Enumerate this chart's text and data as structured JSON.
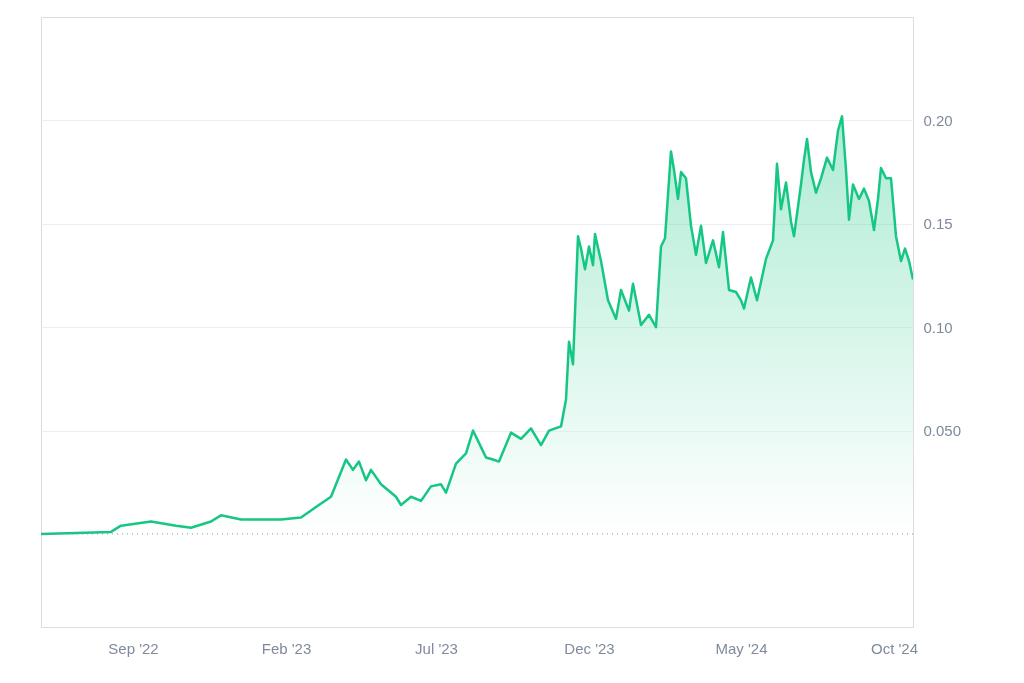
{
  "chart_data": {
    "type": "area",
    "x": [
      "2022-06-01",
      "2022-08-10",
      "2022-08-20",
      "2022-09-19",
      "2022-10-14",
      "2022-10-29",
      "2022-11-18",
      "2022-11-28",
      "2022-12-18",
      "2023-01-07",
      "2023-01-27",
      "2023-02-16",
      "2023-03-03",
      "2023-03-18",
      "2023-04-02",
      "2023-04-09",
      "2023-04-15",
      "2023-04-22",
      "2023-04-27",
      "2023-05-07",
      "2023-05-22",
      "2023-05-27",
      "2023-06-06",
      "2023-06-16",
      "2023-06-26",
      "2023-07-06",
      "2023-07-11",
      "2023-07-21",
      "2023-07-31",
      "2023-08-07",
      "2023-08-15",
      "2023-08-20",
      "2023-08-27",
      "2023-09-02",
      "2023-09-14",
      "2023-09-24",
      "2023-10-04",
      "2023-10-14",
      "2023-10-22",
      "2023-11-03",
      "2023-11-08",
      "2023-11-11",
      "2023-11-15",
      "2023-11-20",
      "2023-11-23",
      "2023-11-27",
      "2023-12-01",
      "2023-12-05",
      "2023-12-07",
      "2023-12-13",
      "2023-12-20",
      "2023-12-28",
      "2024-01-02",
      "2024-01-10",
      "2024-01-14",
      "2024-01-22",
      "2024-01-30",
      "2024-02-06",
      "2024-02-11",
      "2024-02-15",
      "2024-02-21",
      "2024-02-24",
      "2024-02-28",
      "2024-03-02",
      "2024-03-07",
      "2024-03-12",
      "2024-03-17",
      "2024-03-22",
      "2024-03-27",
      "2024-04-03",
      "2024-04-09",
      "2024-04-13",
      "2024-04-19",
      "2024-04-26",
      "2024-05-01",
      "2024-05-04",
      "2024-05-11",
      "2024-05-17",
      "2024-05-26",
      "2024-06-02",
      "2024-06-06",
      "2024-06-10",
      "2024-06-15",
      "2024-06-20",
      "2024-06-23",
      "2024-06-30",
      "2024-07-03",
      "2024-07-06",
      "2024-07-10",
      "2024-07-15",
      "2024-07-20",
      "2024-07-26",
      "2024-08-01",
      "2024-08-06",
      "2024-08-10",
      "2024-08-14",
      "2024-08-17",
      "2024-08-21",
      "2024-08-27",
      "2024-09-01",
      "2024-09-06",
      "2024-09-11",
      "2024-09-15",
      "2024-09-18",
      "2024-09-23",
      "2024-09-28",
      "2024-10-03",
      "2024-10-08",
      "2024-10-12",
      "2024-10-16",
      "2024-10-20"
    ],
    "series": [
      {
        "color": "#16c784",
        "values": [
          0.0,
          0.001,
          0.004,
          0.006,
          0.004,
          0.003,
          0.006,
          0.009,
          0.007,
          0.007,
          0.007,
          0.008,
          0.013,
          0.018,
          0.036,
          0.031,
          0.035,
          0.026,
          0.031,
          0.024,
          0.018,
          0.014,
          0.018,
          0.016,
          0.023,
          0.024,
          0.02,
          0.034,
          0.039,
          0.05,
          0.042,
          0.037,
          0.036,
          0.035,
          0.049,
          0.046,
          0.051,
          0.043,
          0.05,
          0.052,
          0.065,
          0.093,
          0.082,
          0.144,
          0.138,
          0.128,
          0.139,
          0.13,
          0.145,
          0.132,
          0.113,
          0.104,
          0.118,
          0.108,
          0.121,
          0.101,
          0.106,
          0.1,
          0.139,
          0.143,
          0.185,
          0.176,
          0.162,
          0.175,
          0.172,
          0.149,
          0.135,
          0.149,
          0.131,
          0.142,
          0.129,
          0.146,
          0.118,
          0.117,
          0.113,
          0.109,
          0.124,
          0.113,
          0.133,
          0.142,
          0.179,
          0.157,
          0.17,
          0.151,
          0.144,
          0.169,
          0.181,
          0.191,
          0.175,
          0.165,
          0.172,
          0.182,
          0.176,
          0.195,
          0.202,
          0.176,
          0.152,
          0.169,
          0.162,
          0.167,
          0.161,
          0.147,
          0.162,
          0.177,
          0.172,
          0.172,
          0.144,
          0.132,
          0.138,
          0.132,
          0.123
        ]
      }
    ],
    "xlim": [
      "2022-06-01",
      "2024-10-20"
    ],
    "xticks": [
      {
        "value": "2022-09-01",
        "label": "Sep '22"
      },
      {
        "value": "2023-02-01",
        "label": "Feb '23"
      },
      {
        "value": "2023-07-01",
        "label": "Jul '23"
      },
      {
        "value": "2023-12-01",
        "label": "Dec '23"
      },
      {
        "value": "2024-05-01",
        "label": "May '24"
      },
      {
        "value": "2024-10-01",
        "label": "Oct '24"
      }
    ],
    "ylim": [
      -0.045,
      0.25
    ],
    "yticks": [
      {
        "value": 0.05,
        "label": "0.050"
      },
      {
        "value": 0.1,
        "label": "0.10"
      },
      {
        "value": 0.15,
        "label": "0.15"
      },
      {
        "value": 0.2,
        "label": "0.20"
      }
    ],
    "ref_lines": [
      {
        "axis": "y",
        "value": 0,
        "color": "#8a8f99",
        "line_style": "dotted"
      }
    ],
    "grid": "y"
  }
}
